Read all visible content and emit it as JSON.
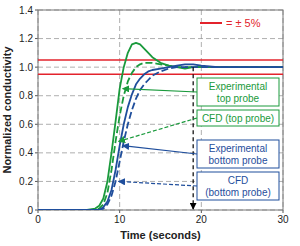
{
  "chart_data": {
    "type": "line",
    "x_label": "Time (seconds)",
    "y_label": "Normalized conductivity",
    "x": [
      0,
      5,
      6,
      7,
      7.5,
      8,
      8.5,
      9,
      9.5,
      10,
      10.5,
      11,
      11.5,
      12,
      12.5,
      13,
      13.5,
      14,
      15,
      16,
      17,
      18,
      19,
      20,
      22,
      25,
      28,
      30
    ],
    "series": [
      {
        "name": "Experimental\ntop probe",
        "color": "#1a9a3c",
        "line_style": "solid",
        "values": [
          0,
          0,
          0,
          0.01,
          0.03,
          0.08,
          0.2,
          0.4,
          0.62,
          0.85,
          1.0,
          1.1,
          1.16,
          1.17,
          1.16,
          1.13,
          1.1,
          1.07,
          1.03,
          1.01,
          1.0,
          0.99,
          1.0,
          1.0,
          1.0,
          1.0,
          1.0,
          1.0
        ]
      },
      {
        "name": "CFD (top probe)",
        "color": "#1a9a3c",
        "line_style": "dashed",
        "values": [
          0,
          0,
          0,
          0,
          0.01,
          0.04,
          0.12,
          0.28,
          0.48,
          0.66,
          0.8,
          0.9,
          0.96,
          1.0,
          1.02,
          1.03,
          1.03,
          1.03,
          1.02,
          1.01,
          1.0,
          1.0,
          1.0,
          1.0,
          1.0,
          1.0,
          1.0,
          1.0
        ]
      },
      {
        "name": "Experimental\nbottom probe",
        "color": "#1f4e9c",
        "line_style": "solid",
        "values": [
          0,
          0,
          0,
          0,
          0,
          0.02,
          0.06,
          0.14,
          0.28,
          0.45,
          0.6,
          0.72,
          0.81,
          0.88,
          0.92,
          0.95,
          0.97,
          0.98,
          0.99,
          1.0,
          1.01,
          1.02,
          1.02,
          1.01,
          1.0,
          1.0,
          1.0,
          1.0
        ]
      },
      {
        "name": "CFD\n(bottom probe)",
        "color": "#1f4e9c",
        "line_style": "dashed",
        "values": [
          0,
          0,
          0,
          0,
          0,
          0.01,
          0.04,
          0.1,
          0.2,
          0.34,
          0.48,
          0.6,
          0.7,
          0.78,
          0.84,
          0.88,
          0.91,
          0.94,
          0.97,
          0.99,
          1.0,
          1.0,
          1.0,
          1.0,
          1.0,
          1.0,
          1.0,
          1.0
        ]
      }
    ],
    "reference_lines": {
      "label": "= ± 5%",
      "color": "#e3232c",
      "values": [
        0.95,
        1.05
      ]
    },
    "vline": {
      "x": 19,
      "from": 1.0,
      "to": 0
    },
    "xlim": [
      0,
      30
    ],
    "ylim": [
      0,
      1.4
    ],
    "xticks": [
      0,
      10,
      20,
      30
    ],
    "yticks": [
      0,
      0.2,
      0.4,
      0.6,
      0.8,
      {
        "value": 1,
        "label": "1.0"
      },
      1.2,
      1.4
    ],
    "grid": true
  }
}
